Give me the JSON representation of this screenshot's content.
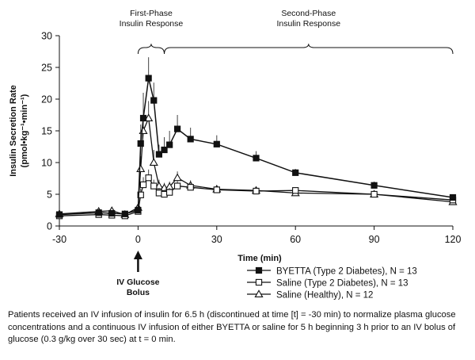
{
  "chart_data": {
    "type": "line",
    "xlabel": "Time (min)",
    "ylabel_line1": "Insulin Secretion Rate",
    "ylabel_line2": "(pmol•kg⁻¹•min⁻¹)",
    "xlim": [
      -30,
      120
    ],
    "ylim": [
      0,
      30
    ],
    "xticks": [
      -30,
      0,
      30,
      60,
      90,
      120
    ],
    "yticks": [
      0,
      5,
      10,
      15,
      20,
      25,
      30
    ],
    "grid": false,
    "legend_position": "bottom-right",
    "phase_labels": {
      "first": [
        "First-Phase",
        "Insulin Response"
      ],
      "second": [
        "Second-Phase",
        "Insulin Response"
      ]
    },
    "phase_ranges": {
      "first": [
        0,
        10
      ],
      "second": [
        10,
        120
      ]
    },
    "annotation": {
      "x": 0,
      "lines": [
        "IV Glucose",
        "Bolus"
      ]
    },
    "series": [
      {
        "name": "BYETTA (Type 2 Diabetes), N = 13",
        "marker": "filled-square",
        "x": [
          -30,
          -15,
          -10,
          -5,
          0,
          1,
          2,
          4,
          6,
          8,
          10,
          12,
          15,
          20,
          30,
          45,
          60,
          90,
          120
        ],
        "y": [
          1.8,
          2.1,
          2.0,
          1.9,
          2.5,
          13.0,
          17.0,
          23.3,
          19.8,
          11.3,
          12.0,
          12.8,
          15.3,
          13.7,
          12.9,
          10.7,
          8.4,
          6.4,
          4.5
        ],
        "err": [
          0.3,
          0.3,
          0.3,
          0.3,
          0.5,
          3.0,
          4.0,
          3.3,
          2.8,
          1.5,
          2.0,
          2.2,
          2.2,
          1.8,
          1.4,
          1.1,
          0.6,
          0.6,
          0.5
        ]
      },
      {
        "name": "Saline (Type 2 Diabetes), N = 13",
        "marker": "open-square",
        "x": [
          -30,
          -15,
          -10,
          -5,
          0,
          1,
          2,
          4,
          6,
          8,
          10,
          12,
          15,
          20,
          30,
          45,
          60,
          90,
          120
        ],
        "y": [
          1.6,
          1.8,
          1.7,
          1.6,
          2.3,
          4.9,
          6.5,
          7.6,
          6.3,
          5.2,
          5.0,
          5.3,
          6.3,
          6.1,
          5.7,
          5.5,
          5.6,
          5.0,
          4.1
        ],
        "err": [
          0.3,
          0.3,
          0.3,
          0.3,
          0.4,
          1.0,
          1.2,
          1.3,
          1.0,
          0.8,
          0.7,
          0.7,
          0.8,
          0.6,
          0.5,
          0.5,
          0.5,
          0.5,
          0.4
        ]
      },
      {
        "name": "Saline (Healthy), N = 12",
        "marker": "open-triangle",
        "x": [
          -30,
          -15,
          -10,
          -5,
          0,
          1,
          2,
          4,
          6,
          8,
          10,
          12,
          15,
          20,
          30,
          45,
          60,
          90,
          120
        ],
        "y": [
          1.9,
          2.3,
          2.4,
          1.8,
          2.9,
          9.0,
          15.0,
          17.0,
          10.0,
          6.3,
          6.0,
          6.2,
          7.6,
          6.4,
          5.8,
          5.6,
          5.2,
          5.0,
          3.8
        ],
        "err": [
          0.3,
          0.3,
          0.3,
          0.3,
          0.5,
          2.0,
          2.5,
          2.7,
          2.0,
          1.0,
          0.8,
          0.8,
          1.0,
          0.8,
          0.6,
          0.5,
          0.5,
          0.5,
          0.4
        ]
      }
    ]
  },
  "caption": "Patients received an IV infusion of insulin for 6.5 h (discontinued at time [t] = -30 min) to normalize plasma glucose concentrations and a continuous IV infusion of either BYETTA or saline for 5 h beginning 3 h prior to an IV bolus of glucose (0.3 g/kg over 30 sec) at t = 0 min."
}
